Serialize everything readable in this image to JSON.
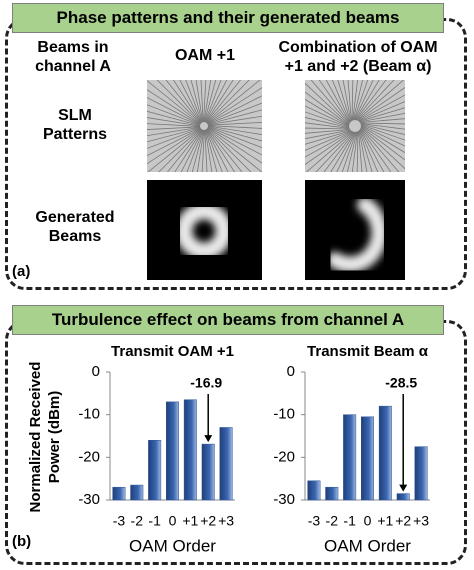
{
  "panel_a": {
    "title": "Phase patterns and their generated beams",
    "row_header": "Beams in channel A",
    "columns": [
      "OAM +1",
      "Combination of OAM +1 and +2 (Beam α)"
    ],
    "rows": [
      "SLM Patterns",
      "Generated Beams"
    ],
    "label": "(a)"
  },
  "panel_b": {
    "title": "Turbulence effect on beams from channel A",
    "y_label": "Normalized Received Power (dBm)",
    "label": "(b)"
  },
  "chart_data": [
    {
      "type": "bar",
      "title": "Transmit OAM +1",
      "x_label": "OAM Order",
      "categories": [
        "-3",
        "-2",
        "-1",
        "0",
        "+1",
        "+2",
        "+3"
      ],
      "values": [
        -27,
        -26.5,
        -16,
        -7,
        -6.5,
        -16.9,
        -13
      ],
      "value_labels": [
        null,
        null,
        null,
        null,
        null,
        "-16.9",
        null
      ],
      "color": "#2f5597",
      "ylim": [
        -30,
        0
      ],
      "yticks": [
        -30,
        -20,
        -10,
        0
      ]
    },
    {
      "type": "bar",
      "title": "Transmit Beam α",
      "x_label": "OAM Order",
      "categories": [
        "-3",
        "-2",
        "-1",
        "0",
        "+1",
        "+2",
        "+3"
      ],
      "values": [
        -25.5,
        -27,
        -10,
        -10.5,
        -8,
        -28.5,
        -17.5
      ],
      "value_labels": [
        null,
        null,
        null,
        null,
        null,
        "-28.5",
        null
      ],
      "color": "#2f5597",
      "ylim": [
        -30,
        0
      ],
      "yticks": [
        -30,
        -20,
        -10,
        0
      ]
    }
  ]
}
